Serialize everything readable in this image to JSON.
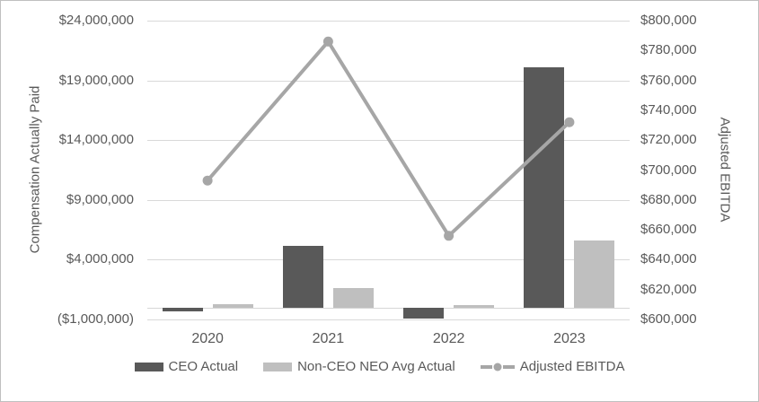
{
  "chart_data": {
    "type": "combo-bar-line",
    "categories": [
      "2020",
      "2021",
      "2022",
      "2023"
    ],
    "series": [
      {
        "name": "CEO Actual",
        "type": "bar",
        "axis": "left",
        "color": "#595959",
        "values": [
          -350000,
          5150000,
          -950000,
          20100000
        ]
      },
      {
        "name": "Non-CEO NEO Avg Actual",
        "type": "bar",
        "axis": "left",
        "color": "#bfbfbf",
        "values": [
          250000,
          1650000,
          200000,
          5600000
        ]
      },
      {
        "name": "Adjusted EBITDA",
        "type": "line",
        "axis": "right",
        "color": "#a6a6a6",
        "values": [
          693000,
          786000,
          656000,
          732000
        ]
      }
    ],
    "left_axis": {
      "title": "Compensation Actually Paid",
      "min": -1000000,
      "max": 24000000,
      "tick_step": 5000000,
      "tick_labels": [
        "$24,000,000",
        "$19,000,000",
        "$14,000,000",
        "$9,000,000",
        "$4,000,000",
        "($1,000,000)"
      ]
    },
    "right_axis": {
      "title": "Adjusted EBITDA",
      "min": 600000,
      "max": 800000,
      "tick_step": 20000,
      "tick_labels": [
        "$800,000",
        "$780,000",
        "$760,000",
        "$740,000",
        "$720,000",
        "$700,000",
        "$680,000",
        "$660,000",
        "$640,000",
        "$620,000",
        "$600,000"
      ]
    },
    "grid": true,
    "legend_position": "bottom"
  },
  "colors": {
    "text": "#595959",
    "gridline": "#d9d9d9",
    "background": "#ffffff",
    "border": "#bfbfbf",
    "bar_dark": "#595959",
    "bar_light": "#bfbfbf",
    "line": "#a6a6a6"
  }
}
